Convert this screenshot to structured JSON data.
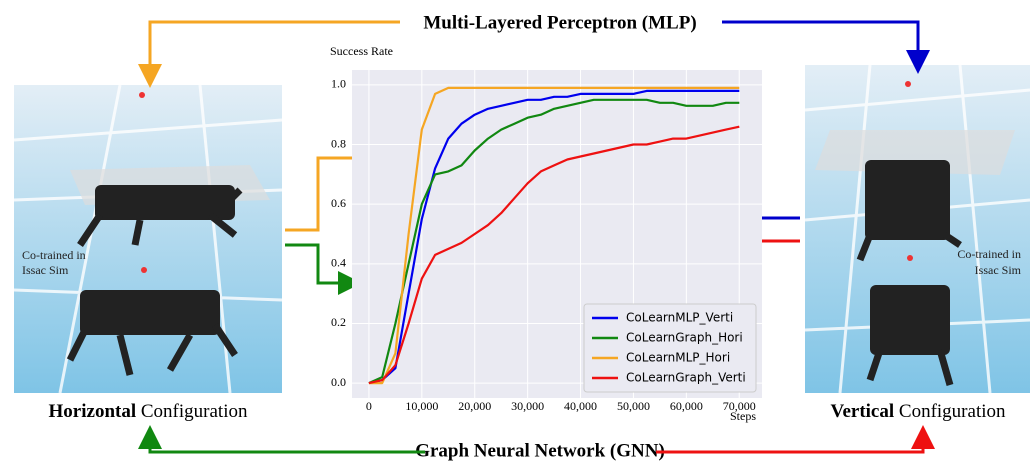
{
  "chart_data": {
    "type": "line",
    "y_label": "Success Rate",
    "x_label": "Steps",
    "x": [
      0,
      2500,
      5000,
      7500,
      10000,
      12500,
      15000,
      17500,
      20000,
      22500,
      25000,
      27500,
      30000,
      32500,
      35000,
      37500,
      40000,
      42500,
      45000,
      47500,
      50000,
      52500,
      55000,
      57500,
      60000,
      62500,
      65000,
      67500,
      70000
    ],
    "series": [
      {
        "name": "CoLearnMLP_Verti",
        "color": "#0000ee",
        "values": [
          0,
          0.01,
          0.05,
          0.3,
          0.55,
          0.72,
          0.82,
          0.87,
          0.9,
          0.92,
          0.93,
          0.94,
          0.95,
          0.95,
          0.96,
          0.96,
          0.97,
          0.97,
          0.97,
          0.97,
          0.97,
          0.98,
          0.98,
          0.98,
          0.98,
          0.98,
          0.98,
          0.98,
          0.98
        ]
      },
      {
        "name": "CoLearnGraph_Hori",
        "color": "#118811",
        "values": [
          0,
          0.02,
          0.2,
          0.4,
          0.6,
          0.7,
          0.71,
          0.73,
          0.78,
          0.82,
          0.85,
          0.87,
          0.89,
          0.9,
          0.92,
          0.93,
          0.94,
          0.95,
          0.95,
          0.95,
          0.95,
          0.95,
          0.94,
          0.94,
          0.93,
          0.93,
          0.93,
          0.94,
          0.94
        ]
      },
      {
        "name": "CoLearnMLP_Hori",
        "color": "#f5a623",
        "values": [
          0,
          0,
          0.1,
          0.5,
          0.85,
          0.97,
          0.99,
          0.99,
          0.99,
          0.99,
          0.99,
          0.99,
          0.99,
          0.99,
          0.99,
          0.99,
          0.99,
          0.99,
          0.99,
          0.99,
          0.99,
          0.99,
          0.99,
          0.99,
          0.99,
          0.99,
          0.99,
          0.99,
          0.99
        ]
      },
      {
        "name": "CoLearnGraph_Verti",
        "color": "#ee1111",
        "values": [
          0,
          0.01,
          0.06,
          0.2,
          0.35,
          0.43,
          0.45,
          0.47,
          0.5,
          0.53,
          0.57,
          0.62,
          0.67,
          0.71,
          0.73,
          0.75,
          0.76,
          0.77,
          0.78,
          0.79,
          0.8,
          0.8,
          0.81,
          0.82,
          0.82,
          0.83,
          0.84,
          0.85,
          0.86
        ]
      }
    ],
    "xlim": [
      -3200,
      74300
    ],
    "ylim": [
      -0.05,
      1.05
    ],
    "xticks": [
      0,
      {
        "value": 10000,
        "label": "10,000"
      },
      {
        "value": 20000,
        "label": "20,000"
      },
      {
        "value": 30000,
        "label": "30,000"
      },
      {
        "value": 40000,
        "label": "40,000"
      },
      {
        "value": 50000,
        "label": "50,000"
      },
      {
        "value": 60000,
        "label": "60,000"
      },
      {
        "value": 70000,
        "label": "70,000"
      }
    ],
    "yticks": [
      {
        "value": 0,
        "label": "0.0"
      },
      0.2,
      0.4,
      0.6,
      0.8,
      {
        "value": 1,
        "label": "1.0"
      }
    ],
    "grid": true,
    "legend": "lower right"
  },
  "figure": {
    "top_label": "Multi-Layered Perceptron (MLP)",
    "bottom_label": "Graph Neural Network (GNN)",
    "left": {
      "bold": "Horizontal",
      "rest": "Configuration",
      "note": [
        "Co-trained in",
        "Issac Sim"
      ]
    },
    "right": {
      "bold": "Vertical",
      "rest": "Configuration",
      "note": [
        "Co-trained in",
        "Issac Sim"
      ]
    }
  }
}
